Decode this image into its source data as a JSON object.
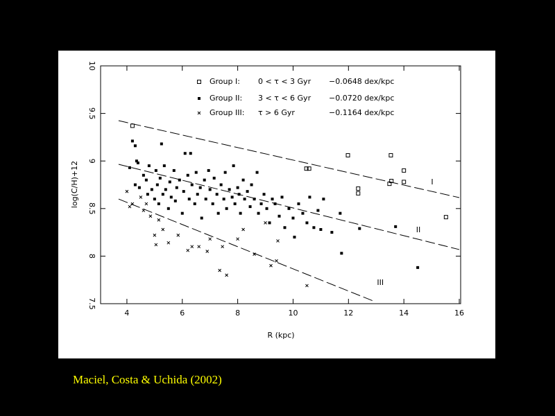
{
  "chart_data": {
    "type": "scatter",
    "x_label": "R (kpc)",
    "y_label": "log(C/H)+12",
    "xlim": [
      3.05,
      16.05
    ],
    "ylim": [
      7.5,
      10
    ],
    "xticks": [
      4,
      6,
      8,
      10,
      12,
      14,
      16
    ],
    "yticks": [
      7.5,
      8,
      8.5,
      9,
      9.5,
      10
    ],
    "series": [
      {
        "name": "Group I:",
        "age": "0 < τ < 3 Gyr",
        "slope": "−0.0648 dex/kpc",
        "marker": "open-square",
        "color": "#000000",
        "x": [
          4.2,
          10.48,
          10.58,
          11.98,
          13.53,
          12.35,
          12.35,
          13.48,
          13.55,
          14.0,
          14.0,
          15.52
        ],
        "values": [
          9.37,
          8.92,
          8.92,
          9.06,
          9.06,
          8.71,
          8.66,
          8.76,
          8.79,
          8.9,
          8.78,
          8.41
        ]
      },
      {
        "name": "Group II:",
        "age": "3 < τ < 6 Gyr",
        "slope": "−0.0720 dex/kpc",
        "marker": "filled-square",
        "color": "#000000",
        "x": [
          4.1,
          4.2,
          4.3,
          4.35,
          4.4,
          4.3,
          4.45,
          4.6,
          4.7,
          4.75,
          4.8,
          4.9,
          5.0,
          5.05,
          5.1,
          5.15,
          5.2,
          5.25,
          5.3,
          5.35,
          5.4,
          5.5,
          5.55,
          5.6,
          5.7,
          5.75,
          5.8,
          5.9,
          6.0,
          6.05,
          6.1,
          6.2,
          6.25,
          6.3,
          6.35,
          6.45,
          6.5,
          6.55,
          6.65,
          6.7,
          6.8,
          6.85,
          6.95,
          7.0,
          7.1,
          7.15,
          7.25,
          7.3,
          7.4,
          7.5,
          7.55,
          7.6,
          7.7,
          7.8,
          7.85,
          7.9,
          8.0,
          8.05,
          8.1,
          8.2,
          8.25,
          8.35,
          8.45,
          8.5,
          8.6,
          8.7,
          8.75,
          8.85,
          8.95,
          9.05,
          9.15,
          9.25,
          9.35,
          9.5,
          9.6,
          9.7,
          9.85,
          10.0,
          10.05,
          10.2,
          10.35,
          10.5,
          10.6,
          10.75,
          10.9,
          11.0,
          11.1,
          11.4,
          11.7,
          11.75,
          12.4,
          13.7,
          14.5
        ],
        "values": [
          8.93,
          9.21,
          9.16,
          9.0,
          8.98,
          8.75,
          8.72,
          8.85,
          8.8,
          8.65,
          8.95,
          8.7,
          8.6,
          8.9,
          8.75,
          8.55,
          8.82,
          9.18,
          8.65,
          8.95,
          8.7,
          8.5,
          8.78,
          8.62,
          8.9,
          8.58,
          8.72,
          8.8,
          8.45,
          8.68,
          9.08,
          8.85,
          8.6,
          9.08,
          8.75,
          8.55,
          8.88,
          8.65,
          8.72,
          8.4,
          8.8,
          8.6,
          8.9,
          8.7,
          8.55,
          8.82,
          8.65,
          8.45,
          8.75,
          8.6,
          8.88,
          8.5,
          8.7,
          8.62,
          8.95,
          8.55,
          8.72,
          8.65,
          8.45,
          8.8,
          8.6,
          8.68,
          8.52,
          8.75,
          8.6,
          8.88,
          8.45,
          8.55,
          8.65,
          8.5,
          8.35,
          8.6,
          8.55,
          8.42,
          8.62,
          8.3,
          8.5,
          8.4,
          8.2,
          8.55,
          8.45,
          8.35,
          8.62,
          8.3,
          8.48,
          8.28,
          8.6,
          8.25,
          8.45,
          8.03,
          8.29,
          8.31,
          7.88
        ]
      },
      {
        "name": "Group III:",
        "age": "τ > 6 Gyr",
        "slope": "−0.1164 dex/kpc",
        "marker": "cross",
        "color": "#000000",
        "x": [
          4.0,
          4.1,
          4.2,
          4.5,
          4.6,
          4.7,
          4.85,
          5.0,
          5.05,
          5.15,
          5.3,
          5.5,
          5.85,
          6.2,
          6.35,
          6.6,
          6.9,
          7.0,
          7.35,
          7.45,
          7.6,
          8.0,
          8.2,
          8.6,
          9.0,
          9.2,
          9.4,
          9.45,
          10.5
        ],
        "values": [
          8.68,
          8.52,
          8.55,
          8.62,
          8.48,
          8.55,
          8.42,
          8.22,
          8.12,
          8.38,
          8.28,
          8.14,
          8.22,
          8.06,
          8.1,
          8.1,
          8.05,
          8.18,
          7.85,
          8.1,
          7.8,
          8.18,
          8.28,
          8.02,
          8.35,
          7.9,
          7.95,
          8.16,
          7.69
        ]
      }
    ],
    "fits": [
      {
        "label": "I",
        "x": [
          3.7,
          16
        ],
        "y": [
          9.424,
          8.615
        ]
      },
      {
        "label": "II",
        "x": [
          3.7,
          16
        ],
        "y": [
          8.965,
          8.069
        ]
      },
      {
        "label": "III",
        "x": [
          3.7,
          12.9
        ],
        "y": [
          8.6,
          7.528
        ]
      }
    ],
    "caption": "Maciel, Costa & Uchida (2002)"
  }
}
